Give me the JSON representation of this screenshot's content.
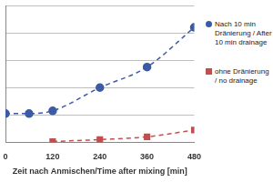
{
  "chart_data": {
    "type": "line",
    "x_label": "Zeit nach Anmischen/Time after mixing [min]",
    "series": [
      {
        "name": "Nach 10 min Dränierung / After 10 min drainage",
        "color": "#3b5ba5",
        "marker": "circle",
        "line_style": "dashed",
        "x": [
          0,
          60,
          120,
          240,
          360,
          480
        ],
        "values": [
          1.05,
          1.05,
          1.15,
          2.0,
          2.75,
          4.2
        ]
      },
      {
        "name": "ohne Dränierung / no drainage",
        "color": "#c0504d",
        "marker": "square",
        "line_style": "dashed",
        "x": [
          120,
          240,
          360,
          480
        ],
        "values": [
          0.03,
          0.1,
          0.2,
          0.45
        ]
      }
    ],
    "xlim": [
      0,
      480
    ],
    "xticks": [
      0,
      120,
      240,
      360,
      480
    ],
    "ylim": [
      0,
      5
    ],
    "yticks": [
      0,
      1,
      2,
      3,
      4,
      5
    ],
    "grid": true,
    "legend": "right",
    "tick_labels": "x"
  }
}
